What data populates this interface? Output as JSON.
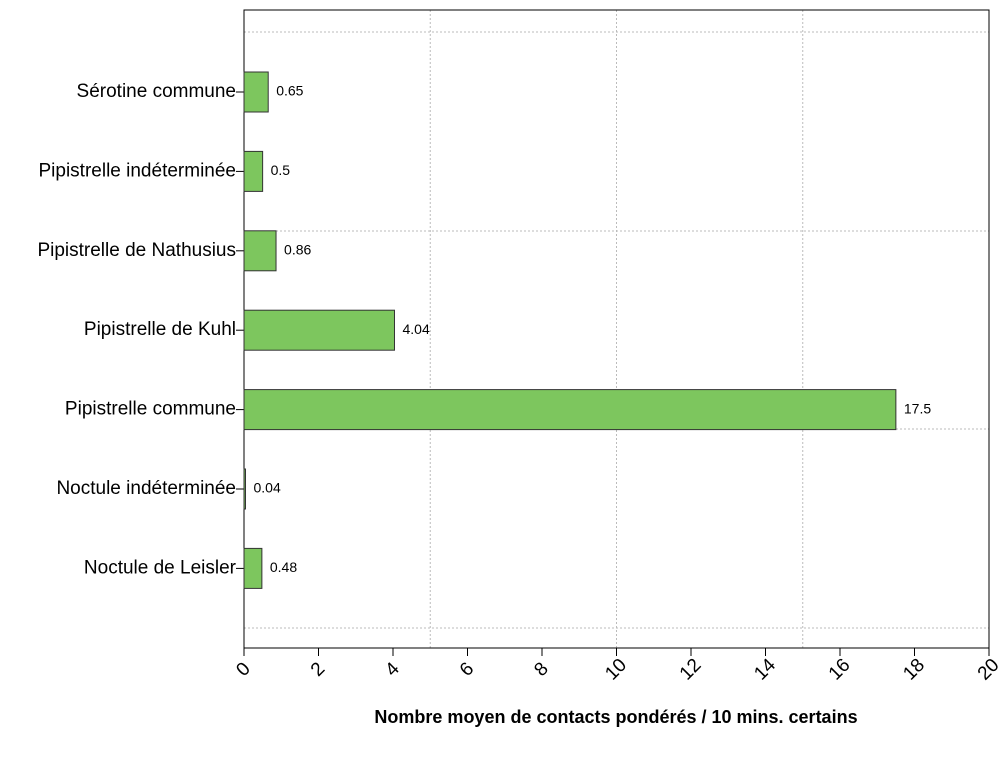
{
  "chart_data": {
    "type": "barh",
    "xlabel": "Nombre moyen de contacts pondérés / 10 mins. certains",
    "categories": [
      "Sérotine commune",
      "Pipistrelle indéterminée",
      "Pipistrelle de Nathusius",
      "Pipistrelle de Kuhl",
      "Pipistrelle commune",
      "Noctule indéterminée",
      "Noctule de Leisler"
    ],
    "values": [
      0.65,
      0.5,
      0.86,
      4.04,
      17.5,
      0.04,
      0.48
    ],
    "color": "#7dc65e",
    "xlim": [
      0,
      20
    ],
    "xticks": [
      0,
      2,
      4,
      6,
      8,
      10,
      12,
      14,
      16,
      18,
      20
    ],
    "grid": true,
    "xgrid": [
      5,
      10,
      15
    ]
  }
}
